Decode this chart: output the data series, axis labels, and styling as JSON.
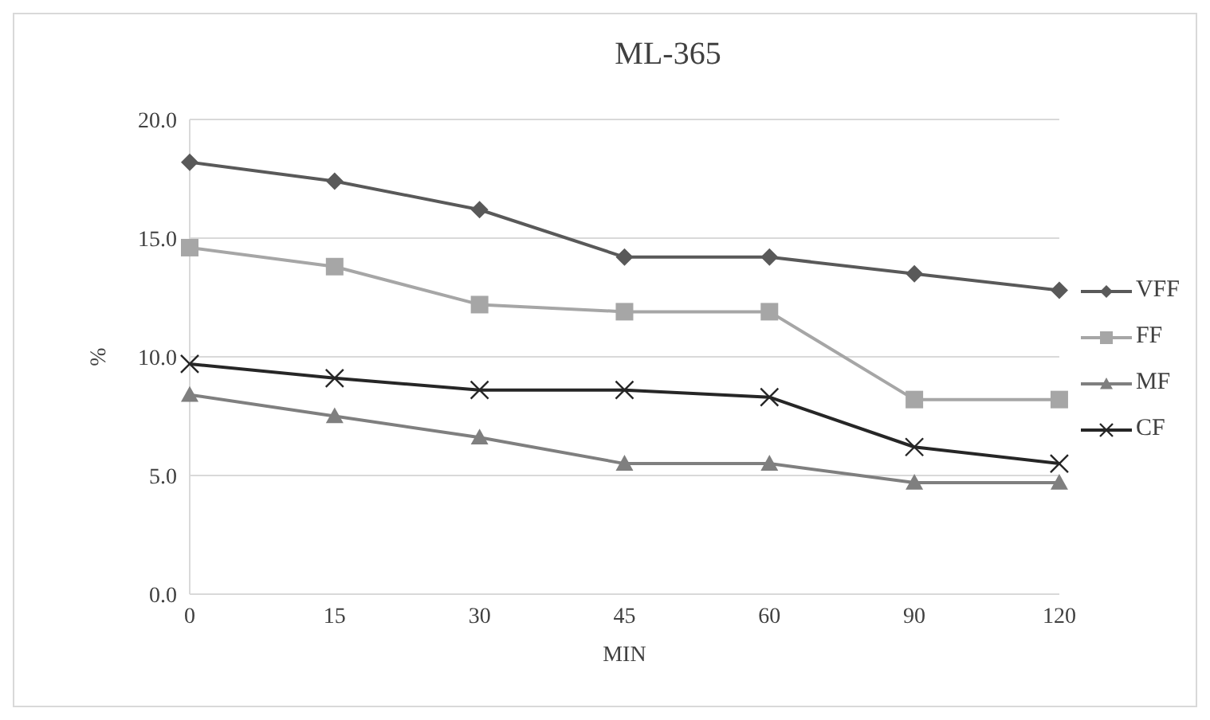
{
  "chart_data": {
    "type": "line",
    "title": "ML-365",
    "xlabel": "MIN",
    "ylabel": "%",
    "categories": [
      "0",
      "15",
      "30",
      "45",
      "60",
      "90",
      "120"
    ],
    "series": [
      {
        "name": "VFF",
        "color": "#595959",
        "marker": "diamond",
        "values": [
          18.2,
          17.4,
          16.2,
          14.2,
          14.2,
          13.5,
          12.8
        ]
      },
      {
        "name": "FF",
        "color": "#a6a6a6",
        "marker": "square",
        "values": [
          14.6,
          13.8,
          12.2,
          11.9,
          11.9,
          8.2,
          8.2
        ]
      },
      {
        "name": "MF",
        "color": "#7f7f7f",
        "marker": "triangle",
        "values": [
          8.4,
          7.5,
          6.6,
          5.5,
          5.5,
          4.7,
          4.7
        ]
      },
      {
        "name": "CF",
        "color": "#262626",
        "marker": "cross",
        "values": [
          9.7,
          9.1,
          8.6,
          8.6,
          8.3,
          6.2,
          5.5
        ]
      }
    ],
    "ylim": [
      0,
      20
    ],
    "yticks": [
      {
        "value": 0,
        "label": "0.0"
      },
      {
        "value": 5,
        "label": "5.0"
      },
      {
        "value": 10,
        "label": "10.0"
      },
      {
        "value": 15,
        "label": "15.0"
      },
      {
        "value": 20,
        "label": "20.0"
      }
    ],
    "grid": "y",
    "legend": "right",
    "line_style": "solid"
  }
}
